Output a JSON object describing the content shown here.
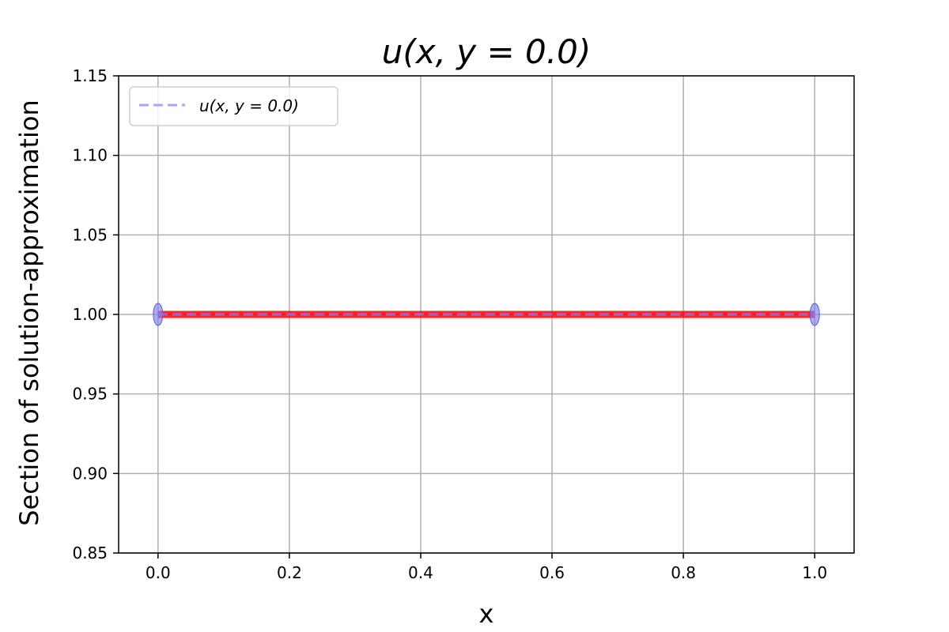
{
  "chart_data": {
    "type": "line",
    "title": "u(x, y = 0.0)",
    "xlabel": "x",
    "ylabel": "Section of solution-approximation",
    "xlim": [
      -0.06,
      1.06
    ],
    "ylim": [
      0.85,
      1.15
    ],
    "x_ticks": [
      0.0,
      0.2,
      0.4,
      0.6,
      0.8,
      1.0
    ],
    "x_tick_labels": [
      "0.0",
      "0.2",
      "0.4",
      "0.6",
      "0.8",
      "1.0"
    ],
    "y_ticks": [
      0.85,
      0.9,
      0.95,
      1.0,
      1.05,
      1.1,
      1.15
    ],
    "y_tick_labels": [
      "0.85",
      "0.90",
      "0.95",
      "1.00",
      "1.05",
      "1.10",
      "1.15"
    ],
    "grid": true,
    "legend_position": "top-left",
    "series": [
      {
        "name": "",
        "style": "solid",
        "color": "#ff0000",
        "x": [
          0.0,
          1.0
        ],
        "y": [
          1.0,
          1.0
        ]
      },
      {
        "name": "u(x, y = 0.0)",
        "style": "dashed",
        "color": "#8080ff",
        "x": [
          0.0,
          1.0
        ],
        "y": [
          1.0,
          1.0
        ]
      }
    ],
    "markers": [
      {
        "x": 0.0,
        "y": 1.0,
        "color": "#7f7fef"
      },
      {
        "x": 1.0,
        "y": 1.0,
        "color": "#7f7fef"
      }
    ]
  }
}
